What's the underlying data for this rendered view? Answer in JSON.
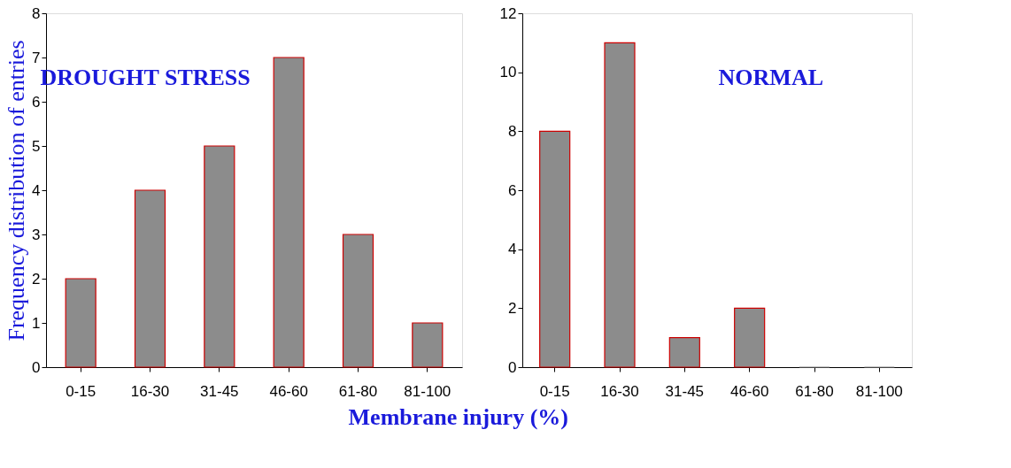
{
  "chart_data": [
    {
      "type": "bar",
      "title": "DROUGHT STRESS",
      "ylabel": "Frequency distribution of entries",
      "xlabel": "Membrane injury (%)",
      "categories": [
        "0-15",
        "16-30",
        "31-45",
        "46-60",
        "61-80",
        "81-100"
      ],
      "values": [
        2,
        4,
        5,
        7,
        3,
        1
      ],
      "color": "#8c8c8c",
      "ylim": [
        0,
        8
      ],
      "yticks": [
        0,
        1,
        2,
        3,
        4,
        5,
        6,
        7,
        8
      ],
      "grid": false
    },
    {
      "type": "bar",
      "title": "NORMAL",
      "categories": [
        "0-15",
        "16-30",
        "31-45",
        "46-60",
        "61-80",
        "81-100"
      ],
      "values": [
        8,
        11,
        1,
        2,
        0,
        0
      ],
      "color": "#8c8c8c",
      "ylim": [
        0,
        12
      ],
      "yticks": [
        0,
        2,
        4,
        6,
        8,
        10,
        12
      ],
      "grid": false
    }
  ]
}
